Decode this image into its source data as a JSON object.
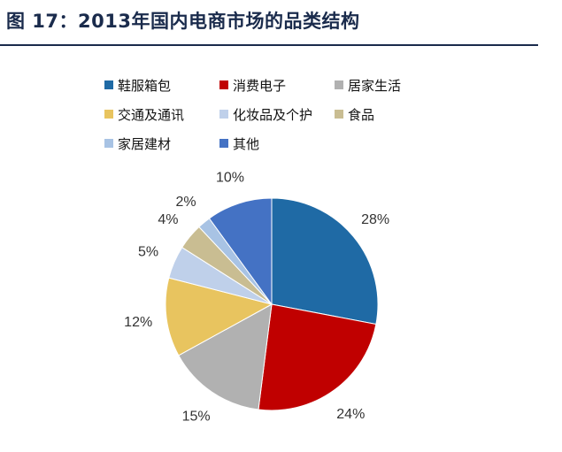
{
  "figure_title": "图 17：2013年国内电商市场的品类结构",
  "chart_data": {
    "type": "pie",
    "title": "",
    "categories": [
      "鞋服箱包",
      "消费电子",
      "居家生活",
      "交通及通讯",
      "化妆品及个护",
      "食品",
      "家居建材",
      "其他"
    ],
    "values": [
      28,
      24,
      15,
      12,
      5,
      4,
      2,
      10
    ],
    "value_labels": [
      "28%",
      "24%",
      "15%",
      "12%",
      "5%",
      "4%",
      "2%",
      "10%"
    ],
    "colors": [
      "#1f6aa5",
      "#c00000",
      "#b1b1b1",
      "#e8c45f",
      "#bfd0ea",
      "#c9bd92",
      "#a8c3e4",
      "#4472c4"
    ],
    "legend_position": "top",
    "start_angle": "12 o'clock, clockwise"
  }
}
